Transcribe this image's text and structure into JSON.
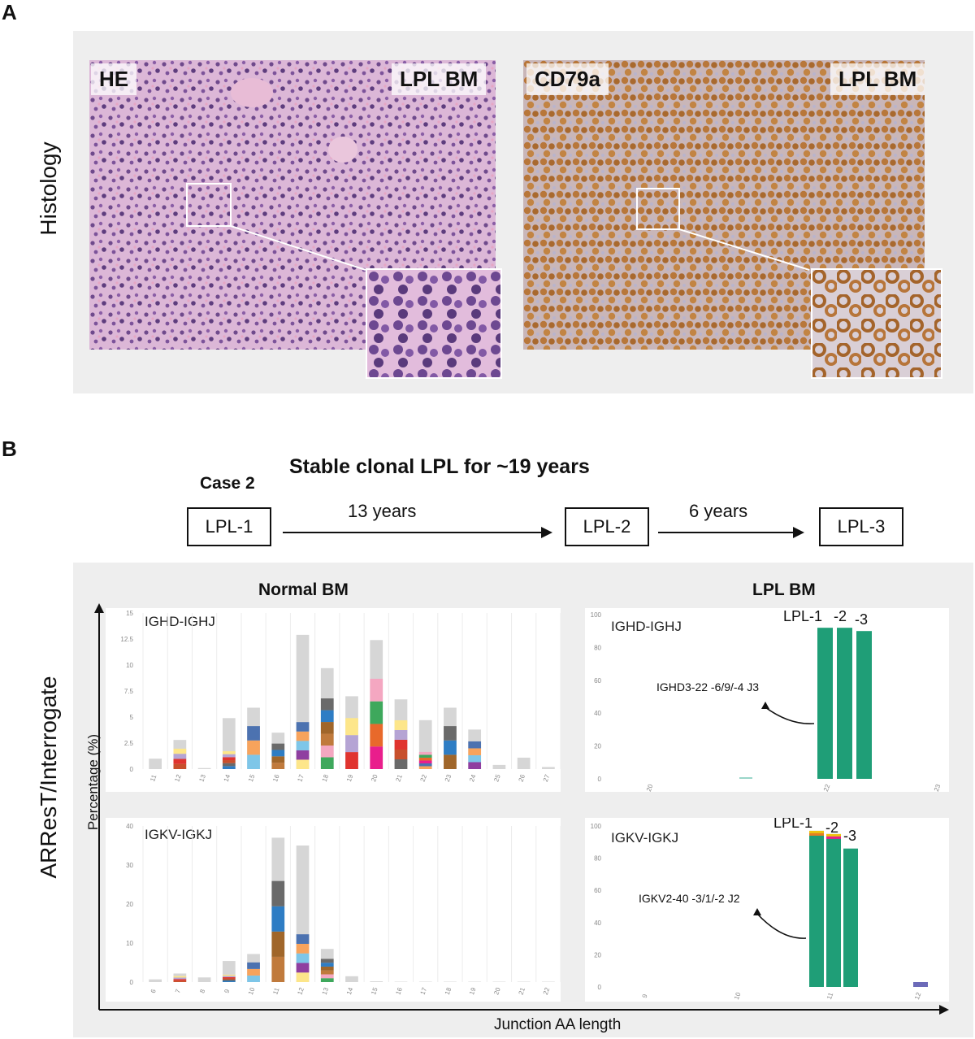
{
  "panel_a": {
    "letter": "A",
    "row_label": "Histology",
    "he_image": {
      "stain_tag": "HE",
      "site_tag": "LPL BM"
    },
    "cd79a_image": {
      "stain_tag": "CD79a",
      "site_tag": "LPL BM"
    }
  },
  "panel_b": {
    "letter": "B",
    "headline": "Stable clonal LPL for ~19 years",
    "case_label": "Case 2",
    "timeline": {
      "boxes": [
        "LPL-1",
        "LPL-2",
        "LPL-3"
      ],
      "intervals": [
        "13 years",
        "6 years"
      ]
    },
    "y_axis_title": "ARResT/Interrogate",
    "y_axis_unit": "Percentage (%)",
    "x_axis_title": "Junction AA length",
    "col_titles": [
      "Normal BM",
      "LPL BM"
    ]
  },
  "colors": {
    "gray": "#d6d6d6",
    "clone_green": "#1f9e77",
    "panel_bg": "#eeeeee"
  },
  "chart_data": [
    {
      "type": "bar",
      "title": "IGHD-IGHJ",
      "group": "Normal BM",
      "x": [
        "11",
        "12",
        "13",
        "14",
        "15",
        "16",
        "17",
        "18",
        "19",
        "20",
        "21",
        "22",
        "23",
        "24",
        "25",
        "26",
        "27"
      ],
      "values": [
        1.0,
        2.8,
        0.1,
        4.9,
        5.9,
        3.5,
        12.9,
        9.7,
        7.0,
        12.4,
        6.7,
        4.7,
        5.9,
        3.8,
        0.4,
        1.1,
        0.2
      ],
      "ylim": [
        0,
        15
      ],
      "yticks": [
        "0",
        "2.5",
        "5",
        "7.5",
        "10",
        "12.5",
        "15"
      ]
    },
    {
      "type": "bar",
      "title": "IGKV-IGKJ",
      "group": "Normal BM",
      "x": [
        "6",
        "7",
        "8",
        "9",
        "10",
        "11",
        "12",
        "13",
        "14",
        "15",
        "16",
        "17",
        "18",
        "19",
        "20",
        "21",
        "22"
      ],
      "values": [
        0.7,
        2.2,
        1.2,
        5.4,
        7.2,
        37.0,
        35.0,
        8.5,
        1.5,
        0.2,
        0.1,
        0.1,
        0.1,
        0.1,
        0.1,
        0.1,
        0.1
      ],
      "ylim": [
        0,
        40
      ],
      "yticks": [
        "0",
        "10",
        "20",
        "30",
        "40"
      ]
    },
    {
      "type": "bar",
      "title": "IGHD-IGHJ",
      "group": "LPL BM",
      "x_ticks": [
        "20",
        "22",
        "23"
      ],
      "series": [
        {
          "name": "LPL-1",
          "values": [
            92
          ]
        },
        {
          "name": "LPL-2",
          "values": [
            92
          ]
        },
        {
          "name": "LPL-3",
          "values": [
            90
          ]
        }
      ],
      "bar_labels": [
        "LPL-1",
        "-2",
        "-3"
      ],
      "annotation": "IGHD3-22  -6/9/-4 J3",
      "ylim": [
        0,
        100
      ],
      "yticks": [
        "0",
        "20",
        "40",
        "60",
        "80",
        "100"
      ]
    },
    {
      "type": "bar",
      "title": "IGKV-IGKJ",
      "group": "LPL BM",
      "x_ticks": [
        "9",
        "10",
        "11",
        "12"
      ],
      "series": [
        {
          "name": "LPL-1",
          "values": [
            97
          ]
        },
        {
          "name": "LPL-2",
          "values": [
            95
          ]
        },
        {
          "name": "LPL-3",
          "values": [
            86
          ]
        }
      ],
      "bar_labels": [
        "LPL-1",
        "-2",
        "-3"
      ],
      "annotation": "IGKV2-40 -3/1/-2 J2",
      "ylim": [
        0,
        100
      ],
      "yticks": [
        "0",
        "20",
        "40",
        "60",
        "80",
        "100"
      ]
    }
  ]
}
